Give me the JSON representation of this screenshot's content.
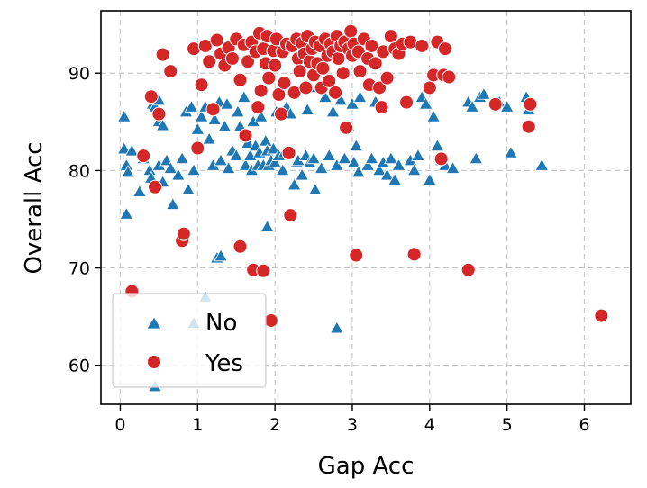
{
  "colors": {
    "no": "#1f77b4",
    "yes": "#d62728",
    "grid": "#c8c8c8",
    "legend_border": "#cccccc"
  },
  "chart_data": {
    "type": "scatter",
    "title": "",
    "xlabel": "Gap Acc",
    "ylabel": "Overall Acc",
    "xlim": [
      -0.25,
      6.6
    ],
    "ylim": [
      56.0,
      96.4
    ],
    "xticks": [
      0,
      1,
      2,
      3,
      4,
      5,
      6
    ],
    "yticks": [
      60,
      70,
      80,
      90
    ],
    "grid": true,
    "legend": {
      "position": "lower-left",
      "entries": [
        "No",
        "Yes"
      ]
    },
    "series": [
      {
        "name": "No",
        "marker": "triangle",
        "points": [
          [
            0.05,
            85.5
          ],
          [
            0.05,
            82.2
          ],
          [
            0.08,
            80.5
          ],
          [
            0.1,
            79.8
          ],
          [
            0.15,
            82.0
          ],
          [
            0.08,
            75.5
          ],
          [
            0.25,
            77.8
          ],
          [
            0.3,
            81.2
          ],
          [
            0.38,
            80.0
          ],
          [
            0.4,
            79.2
          ],
          [
            0.42,
            86.8
          ],
          [
            0.45,
            86.5
          ],
          [
            0.5,
            87.2
          ],
          [
            0.5,
            85.0
          ],
          [
            0.55,
            84.6
          ],
          [
            0.5,
            80.5
          ],
          [
            0.55,
            78.8
          ],
          [
            0.6,
            81.0
          ],
          [
            0.65,
            80.2
          ],
          [
            0.68,
            76.5
          ],
          [
            0.75,
            79.5
          ],
          [
            0.8,
            81.2
          ],
          [
            0.85,
            86.0
          ],
          [
            0.88,
            78.0
          ],
          [
            0.92,
            86.5
          ],
          [
            0.95,
            80.0
          ],
          [
            1.0,
            84.2
          ],
          [
            1.05,
            85.5
          ],
          [
            1.1,
            86.5
          ],
          [
            1.15,
            83.2
          ],
          [
            1.2,
            80.5
          ],
          [
            1.22,
            85.2
          ],
          [
            1.28,
            87.0
          ],
          [
            1.3,
            81.0
          ],
          [
            1.35,
            84.5
          ],
          [
            1.38,
            86.8
          ],
          [
            1.4,
            80.2
          ],
          [
            1.45,
            82.0
          ],
          [
            1.5,
            81.5
          ],
          [
            1.52,
            86.0
          ],
          [
            1.55,
            84.5
          ],
          [
            1.6,
            87.5
          ],
          [
            1.62,
            80.5
          ],
          [
            1.65,
            82.8
          ],
          [
            1.68,
            81.5
          ],
          [
            1.7,
            80.0
          ],
          [
            1.72,
            85.0
          ],
          [
            1.75,
            82.5
          ],
          [
            1.78,
            80.5
          ],
          [
            1.8,
            81.8
          ],
          [
            1.82,
            85.5
          ],
          [
            1.85,
            80.5
          ],
          [
            1.88,
            83.0
          ],
          [
            1.9,
            82.0
          ],
          [
            1.92,
            80.5
          ],
          [
            1.95,
            81.0
          ],
          [
            1.98,
            82.2
          ],
          [
            2.0,
            80.8
          ],
          [
            2.02,
            86.0
          ],
          [
            2.05,
            81.5
          ],
          [
            2.1,
            80.0
          ],
          [
            2.12,
            81.8
          ],
          [
            2.15,
            86.5
          ],
          [
            2.2,
            85.8
          ],
          [
            2.25,
            78.5
          ],
          [
            2.28,
            80.8
          ],
          [
            2.3,
            81.0
          ],
          [
            2.35,
            79.5
          ],
          [
            2.4,
            81.5
          ],
          [
            2.42,
            86.2
          ],
          [
            2.45,
            80.8
          ],
          [
            2.5,
            81.2
          ],
          [
            2.52,
            78.0
          ],
          [
            2.55,
            88.5
          ],
          [
            2.6,
            80.2
          ],
          [
            2.65,
            87.5
          ],
          [
            2.7,
            81.5
          ],
          [
            2.75,
            86.0
          ],
          [
            2.8,
            80.5
          ],
          [
            2.85,
            87.2
          ],
          [
            2.9,
            81.2
          ],
          [
            2.95,
            84.5
          ],
          [
            3.0,
            86.8
          ],
          [
            3.02,
            80.8
          ],
          [
            3.05,
            82.5
          ],
          [
            3.08,
            79.8
          ],
          [
            3.1,
            87.5
          ],
          [
            3.2,
            80.5
          ],
          [
            3.25,
            81.2
          ],
          [
            3.3,
            87.0
          ],
          [
            3.35,
            80.0
          ],
          [
            3.4,
            80.8
          ],
          [
            3.45,
            79.5
          ],
          [
            3.5,
            81.2
          ],
          [
            3.55,
            79.0
          ],
          [
            3.6,
            80.5
          ],
          [
            3.7,
            87.0
          ],
          [
            3.75,
            81.0
          ],
          [
            3.8,
            80.0
          ],
          [
            3.85,
            81.5
          ],
          [
            3.9,
            87.5
          ],
          [
            3.95,
            86.8
          ],
          [
            4.0,
            79.0
          ],
          [
            4.05,
            85.5
          ],
          [
            4.1,
            82.5
          ],
          [
            4.15,
            81.0
          ],
          [
            4.2,
            80.5
          ],
          [
            4.3,
            80.2
          ],
          [
            4.5,
            87.0
          ],
          [
            4.55,
            86.5
          ],
          [
            4.6,
            81.2
          ],
          [
            4.65,
            87.5
          ],
          [
            4.7,
            87.8
          ],
          [
            4.9,
            87.0
          ],
          [
            5.0,
            86.5
          ],
          [
            5.05,
            81.8
          ],
          [
            5.25,
            87.5
          ],
          [
            5.28,
            86.2
          ],
          [
            5.45,
            80.5
          ],
          [
            1.25,
            71.0
          ],
          [
            1.3,
            71.2
          ],
          [
            1.9,
            74.2
          ],
          [
            1.1,
            67.0
          ],
          [
            0.95,
            64.3
          ],
          [
            2.8,
            63.8
          ],
          [
            0.45,
            57.8
          ]
        ]
      },
      {
        "name": "Yes",
        "marker": "circle",
        "points": [
          [
            0.15,
            67.6
          ],
          [
            0.3,
            81.5
          ],
          [
            0.4,
            87.6
          ],
          [
            0.45,
            78.3
          ],
          [
            0.5,
            85.8
          ],
          [
            0.55,
            91.9
          ],
          [
            0.65,
            90.2
          ],
          [
            0.8,
            72.8
          ],
          [
            0.82,
            73.5
          ],
          [
            0.95,
            92.5
          ],
          [
            1.0,
            82.3
          ],
          [
            1.05,
            88.8
          ],
          [
            1.1,
            92.8
          ],
          [
            1.15,
            91.2
          ],
          [
            1.2,
            86.3
          ],
          [
            1.25,
            93.4
          ],
          [
            1.3,
            92.0
          ],
          [
            1.35,
            90.8
          ],
          [
            1.4,
            92.6
          ],
          [
            1.45,
            91.5
          ],
          [
            1.5,
            93.5
          ],
          [
            1.55,
            72.2
          ],
          [
            1.55,
            89.3
          ],
          [
            1.6,
            92.9
          ],
          [
            1.62,
            83.6
          ],
          [
            1.65,
            91.2
          ],
          [
            1.7,
            93.2
          ],
          [
            1.72,
            69.8
          ],
          [
            1.75,
            92.2
          ],
          [
            1.78,
            86.5
          ],
          [
            1.8,
            94.1
          ],
          [
            1.82,
            88.2
          ],
          [
            1.85,
            69.7
          ],
          [
            1.85,
            92.5
          ],
          [
            1.88,
            91.0
          ],
          [
            1.9,
            93.8
          ],
          [
            1.92,
            89.5
          ],
          [
            1.95,
            64.6
          ],
          [
            1.98,
            92.3
          ],
          [
            2.0,
            90.8
          ],
          [
            2.02,
            93.5
          ],
          [
            2.05,
            87.8
          ],
          [
            2.08,
            85.8
          ],
          [
            2.1,
            92.2
          ],
          [
            2.12,
            89.0
          ],
          [
            2.15,
            93.0
          ],
          [
            2.18,
            81.8
          ],
          [
            2.2,
            75.4
          ],
          [
            2.22,
            92.8
          ],
          [
            2.25,
            88.0
          ],
          [
            2.28,
            93.5
          ],
          [
            2.3,
            91.5
          ],
          [
            2.32,
            90.2
          ],
          [
            2.35,
            93.1
          ],
          [
            2.38,
            92.0
          ],
          [
            2.4,
            88.5
          ],
          [
            2.42,
            93.8
          ],
          [
            2.45,
            91.2
          ],
          [
            2.48,
            92.5
          ],
          [
            2.5,
            89.8
          ],
          [
            2.52,
            93.2
          ],
          [
            2.55,
            91.0
          ],
          [
            2.58,
            92.8
          ],
          [
            2.6,
            88.5
          ],
          [
            2.62,
            90.5
          ],
          [
            2.65,
            93.5
          ],
          [
            2.68,
            91.8
          ],
          [
            2.7,
            89.2
          ],
          [
            2.72,
            93.0
          ],
          [
            2.75,
            92.2
          ],
          [
            2.78,
            88.0
          ],
          [
            2.8,
            93.8
          ],
          [
            2.82,
            91.5
          ],
          [
            2.85,
            92.8
          ],
          [
            2.88,
            90.0
          ],
          [
            2.9,
            93.2
          ],
          [
            2.92,
            84.4
          ],
          [
            2.95,
            92.5
          ],
          [
            2.98,
            94.3
          ],
          [
            3.0,
            91.8
          ],
          [
            3.02,
            93.0
          ],
          [
            3.05,
            71.3
          ],
          [
            3.08,
            92.2
          ],
          [
            3.1,
            90.2
          ],
          [
            3.15,
            93.5
          ],
          [
            3.2,
            91.5
          ],
          [
            3.22,
            88.8
          ],
          [
            3.25,
            92.8
          ],
          [
            3.3,
            91.0
          ],
          [
            3.35,
            88.5
          ],
          [
            3.38,
            86.5
          ],
          [
            3.4,
            92.2
          ],
          [
            3.45,
            89.5
          ],
          [
            3.5,
            93.8
          ],
          [
            3.55,
            92.5
          ],
          [
            3.6,
            92.0
          ],
          [
            3.65,
            93.0
          ],
          [
            3.7,
            87.0
          ],
          [
            3.75,
            93.2
          ],
          [
            3.8,
            71.4
          ],
          [
            3.9,
            92.8
          ],
          [
            4.0,
            88.5
          ],
          [
            4.05,
            89.8
          ],
          [
            4.1,
            93.2
          ],
          [
            4.15,
            81.2
          ],
          [
            4.18,
            89.8
          ],
          [
            4.2,
            92.5
          ],
          [
            4.25,
            89.6
          ],
          [
            4.5,
            69.8
          ],
          [
            4.85,
            86.8
          ],
          [
            5.28,
            84.5
          ],
          [
            5.3,
            86.8
          ],
          [
            6.22,
            65.1
          ]
        ]
      }
    ]
  }
}
